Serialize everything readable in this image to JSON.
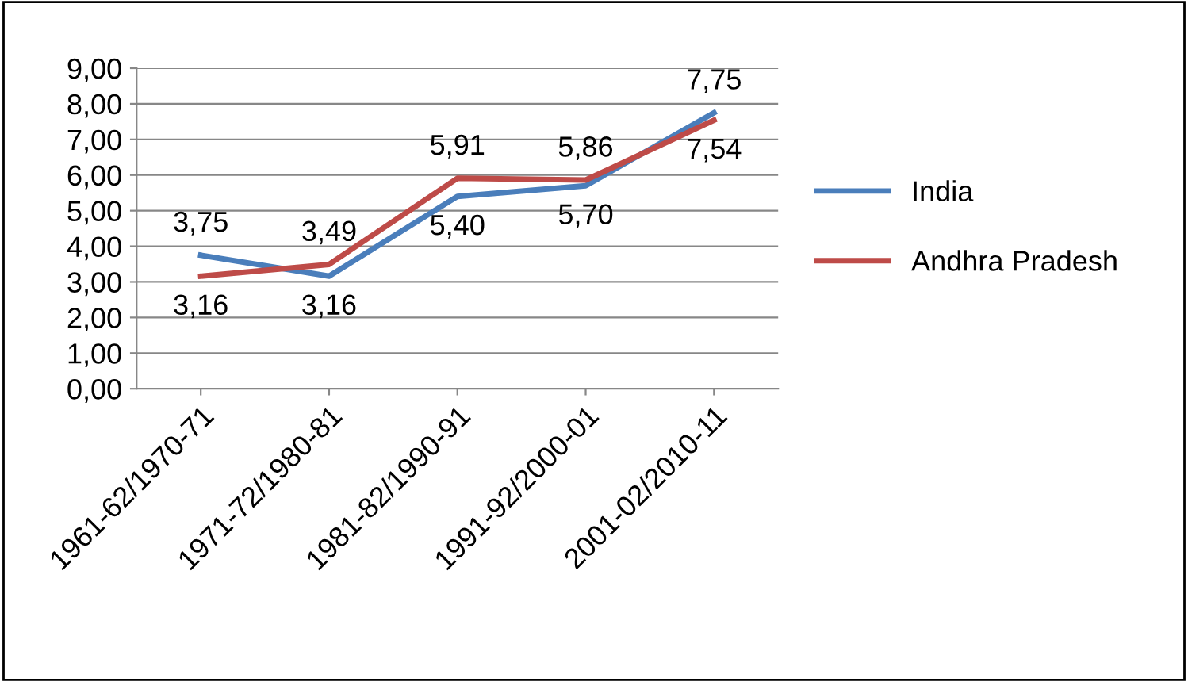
{
  "chart_data": {
    "type": "line",
    "categories": [
      "1961-62/1970-71",
      "1971-72/1980-81",
      "1981-82/1990-91",
      "1991-92/2000-01",
      "2001-02/2010-11"
    ],
    "series": [
      {
        "name": "India",
        "color": "#4a7ebb",
        "values": [
          3.75,
          3.16,
          5.4,
          5.7,
          7.75
        ],
        "value_labels": [
          "3,75",
          "3,16",
          "5,40",
          "5,70",
          "7,75"
        ]
      },
      {
        "name": "Andhra Pradesh",
        "color": "#be4b48",
        "values": [
          3.16,
          3.49,
          5.91,
          5.86,
          7.54
        ],
        "value_labels": [
          "3,16",
          "3,49",
          "5,91",
          "5,86",
          "7,54"
        ]
      }
    ],
    "ylim": [
      0,
      9
    ],
    "yticks": [
      {
        "value": 0,
        "label": "0,00"
      },
      {
        "value": 1,
        "label": "1,00"
      },
      {
        "value": 2,
        "label": "2,00"
      },
      {
        "value": 3,
        "label": "3,00"
      },
      {
        "value": 4,
        "label": "4,00"
      },
      {
        "value": 5,
        "label": "5,00"
      },
      {
        "value": 6,
        "label": "6,00"
      },
      {
        "value": 7,
        "label": "7,00"
      },
      {
        "value": 8,
        "label": "8,00"
      },
      {
        "value": 9,
        "label": "9,00"
      }
    ],
    "grid": "y",
    "legend": "right",
    "marker": "none",
    "line_style": "solid"
  }
}
